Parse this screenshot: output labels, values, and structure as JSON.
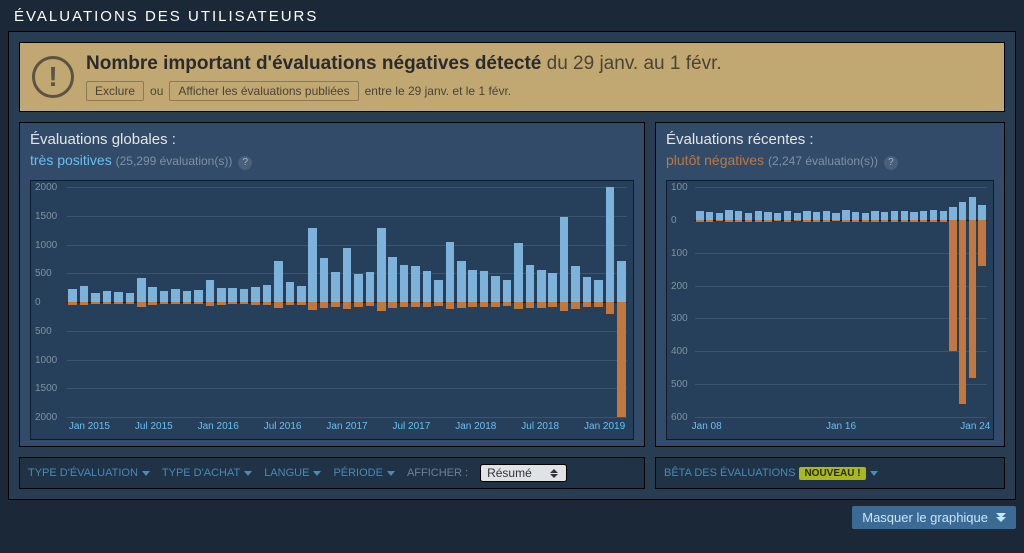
{
  "section_title": "ÉVALUATIONS DES UTILISATEURS",
  "colors": {
    "page_bg": "#1b2838",
    "panel_bg": "#283c52",
    "chart_bg": "#314b68",
    "plot_bg": "#26405b",
    "border": "#000000",
    "positive": "#66c0f4",
    "positive_bar": "#7db3db",
    "negative": "#c1773e",
    "text_muted": "#8091a2",
    "filter_text": "#4c89b5",
    "warn_bg": "#c1a872",
    "warn_text": "#33302b",
    "badge_bg": "#a8b81f",
    "hide_btn_bg": "#3b6b94"
  },
  "warning": {
    "headline": "Nombre important d'évaluations négatives détecté",
    "date_range": "du 29 janv. au 1 févr.",
    "exclude_btn": "Exclure",
    "or_word": "ou",
    "show_btn": "Afficher les évaluations publiées",
    "trailing": "entre le 29 janv. et le 1 févr."
  },
  "global_chart": {
    "title": "Évaluations globales :",
    "rating_label": "très positives",
    "rating_class": "pos",
    "count_text": "(25,299 évaluation(s))",
    "y_max": 2000,
    "y_min": -2000,
    "y_ticks": [
      2000,
      1500,
      1000,
      500,
      0,
      500,
      1000,
      1500,
      2000
    ],
    "x_labels": [
      "Jan 2015",
      "Jul 2015",
      "Jan 2016",
      "Jul 2016",
      "Jan 2017",
      "Jul 2017",
      "Jan 2018",
      "Jul 2018",
      "Jan 2019"
    ],
    "bars": [
      {
        "p": 220,
        "n": 50
      },
      {
        "p": 280,
        "n": 60
      },
      {
        "p": 150,
        "n": 30
      },
      {
        "p": 200,
        "n": 40
      },
      {
        "p": 180,
        "n": 30
      },
      {
        "p": 160,
        "n": 30
      },
      {
        "p": 420,
        "n": 80
      },
      {
        "p": 260,
        "n": 50
      },
      {
        "p": 200,
        "n": 40
      },
      {
        "p": 230,
        "n": 40
      },
      {
        "p": 190,
        "n": 30
      },
      {
        "p": 210,
        "n": 40
      },
      {
        "p": 380,
        "n": 70
      },
      {
        "p": 250,
        "n": 50
      },
      {
        "p": 240,
        "n": 40
      },
      {
        "p": 220,
        "n": 40
      },
      {
        "p": 260,
        "n": 50
      },
      {
        "p": 300,
        "n": 50
      },
      {
        "p": 720,
        "n": 100
      },
      {
        "p": 340,
        "n": 60
      },
      {
        "p": 280,
        "n": 50
      },
      {
        "p": 1280,
        "n": 140
      },
      {
        "p": 760,
        "n": 100
      },
      {
        "p": 520,
        "n": 80
      },
      {
        "p": 940,
        "n": 120
      },
      {
        "p": 480,
        "n": 80
      },
      {
        "p": 520,
        "n": 70
      },
      {
        "p": 1280,
        "n": 150
      },
      {
        "p": 780,
        "n": 110
      },
      {
        "p": 640,
        "n": 90
      },
      {
        "p": 620,
        "n": 90
      },
      {
        "p": 540,
        "n": 80
      },
      {
        "p": 380,
        "n": 70
      },
      {
        "p": 1040,
        "n": 130
      },
      {
        "p": 720,
        "n": 100
      },
      {
        "p": 560,
        "n": 90
      },
      {
        "p": 540,
        "n": 90
      },
      {
        "p": 460,
        "n": 80
      },
      {
        "p": 380,
        "n": 70
      },
      {
        "p": 1020,
        "n": 130
      },
      {
        "p": 640,
        "n": 100
      },
      {
        "p": 560,
        "n": 100
      },
      {
        "p": 500,
        "n": 90
      },
      {
        "p": 1480,
        "n": 150
      },
      {
        "p": 620,
        "n": 120
      },
      {
        "p": 440,
        "n": 90
      },
      {
        "p": 380,
        "n": 80
      },
      {
        "p": 2000,
        "n": 200
      },
      {
        "p": 720,
        "n": 2000
      }
    ]
  },
  "recent_chart": {
    "title": "Évaluations récentes :",
    "rating_label": "plutôt négatives",
    "rating_class": "neg",
    "count_text": "(2,247 évaluation(s))",
    "y_max": 100,
    "y_min": -600,
    "y_ticks": [
      100,
      0,
      100,
      200,
      300,
      400,
      500,
      600
    ],
    "x_labels": [
      "Jan 08",
      "Jan 16",
      "Jan 24"
    ],
    "bars": [
      {
        "p": 28,
        "n": 8
      },
      {
        "p": 24,
        "n": 6
      },
      {
        "p": 20,
        "n": 5
      },
      {
        "p": 30,
        "n": 7
      },
      {
        "p": 26,
        "n": 6
      },
      {
        "p": 22,
        "n": 6
      },
      {
        "p": 28,
        "n": 7
      },
      {
        "p": 24,
        "n": 6
      },
      {
        "p": 20,
        "n": 5
      },
      {
        "p": 26,
        "n": 6
      },
      {
        "p": 22,
        "n": 5
      },
      {
        "p": 28,
        "n": 7
      },
      {
        "p": 24,
        "n": 6
      },
      {
        "p": 26,
        "n": 6
      },
      {
        "p": 20,
        "n": 5
      },
      {
        "p": 30,
        "n": 7
      },
      {
        "p": 24,
        "n": 6
      },
      {
        "p": 22,
        "n": 6
      },
      {
        "p": 26,
        "n": 6
      },
      {
        "p": 24,
        "n": 6
      },
      {
        "p": 28,
        "n": 7
      },
      {
        "p": 26,
        "n": 6
      },
      {
        "p": 24,
        "n": 6
      },
      {
        "p": 28,
        "n": 7
      },
      {
        "p": 30,
        "n": 8
      },
      {
        "p": 26,
        "n": 6
      },
      {
        "p": 40,
        "n": 400
      },
      {
        "p": 55,
        "n": 560
      },
      {
        "p": 70,
        "n": 480
      },
      {
        "p": 45,
        "n": 140
      }
    ]
  },
  "filters": {
    "type_eval": "TYPE D'ÉVALUATION",
    "type_achat": "TYPE D'ACHAT",
    "langue": "LANGUE",
    "periode": "PÉRIODE",
    "afficher_label": "AFFICHER :",
    "select_value": "Résumé",
    "beta_label": "BÊTA DES ÉVALUATIONS",
    "nouveau_badge": "NOUVEAU !"
  },
  "hide_button": "Masquer le graphique"
}
